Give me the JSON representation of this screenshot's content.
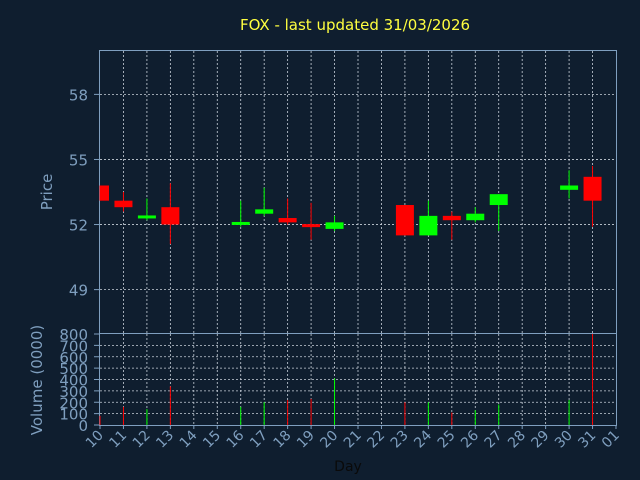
{
  "chart_data": {
    "type": "candlestick",
    "title": "FOX - last updated 31/03/2026",
    "xlabel": "Day",
    "ylabel_price": "Price",
    "ylabel_volume": "Volume (0000)",
    "x_ticks": [
      "10",
      "11",
      "12",
      "13",
      "14",
      "15",
      "16",
      "17",
      "18",
      "19",
      "20",
      "21",
      "22",
      "23",
      "24",
      "25",
      "26",
      "27",
      "28",
      "29",
      "30",
      "31",
      "01"
    ],
    "price_ylim": [
      47,
      60
    ],
    "price_ticks": [
      "49",
      "52",
      "55",
      "58"
    ],
    "volume_ylim": [
      0,
      800
    ],
    "volume_ticks": [
      "0",
      "100",
      "200",
      "300",
      "400",
      "500",
      "600",
      "700",
      "800"
    ],
    "grid": true,
    "up_color": "#00ff00",
    "down_color": "#ff0000",
    "candles": [
      {
        "day": "10",
        "open": 53.8,
        "high": 53.8,
        "low": 53.1,
        "close": 53.1,
        "volume": 80
      },
      {
        "day": "11",
        "open": 53.1,
        "high": 53.5,
        "low": 52.6,
        "close": 52.8,
        "volume": 160
      },
      {
        "day": "12",
        "open": 52.3,
        "high": 53.2,
        "low": 52.2,
        "close": 52.4,
        "volume": 140
      },
      {
        "day": "13",
        "open": 52.8,
        "high": 53.9,
        "low": 51.1,
        "close": 52.0,
        "volume": 340
      },
      {
        "day": "16",
        "open": 52.0,
        "high": 53.1,
        "low": 51.9,
        "close": 52.1,
        "volume": 160
      },
      {
        "day": "17",
        "open": 52.5,
        "high": 53.7,
        "low": 52.4,
        "close": 52.7,
        "volume": 200
      },
      {
        "day": "18",
        "open": 52.3,
        "high": 53.2,
        "low": 52.0,
        "close": 52.1,
        "volume": 220
      },
      {
        "day": "19",
        "open": 52.0,
        "high": 53.0,
        "low": 51.3,
        "close": 51.9,
        "volume": 230
      },
      {
        "day": "20",
        "open": 51.8,
        "high": 52.4,
        "low": 51.7,
        "close": 52.1,
        "volume": 410
      },
      {
        "day": "23",
        "open": 52.9,
        "high": 52.9,
        "low": 51.5,
        "close": 51.5,
        "volume": 200
      },
      {
        "day": "24",
        "open": 51.5,
        "high": 53.1,
        "low": 51.5,
        "close": 52.4,
        "volume": 200
      },
      {
        "day": "25",
        "open": 52.4,
        "high": 52.6,
        "low": 51.3,
        "close": 52.2,
        "volume": 110
      },
      {
        "day": "26",
        "open": 52.2,
        "high": 52.8,
        "low": 52.1,
        "close": 52.5,
        "volume": 130
      },
      {
        "day": "27",
        "open": 52.9,
        "high": 53.4,
        "low": 51.7,
        "close": 53.4,
        "volume": 180
      },
      {
        "day": "30",
        "open": 53.6,
        "high": 54.5,
        "low": 53.2,
        "close": 53.8,
        "volume": 220
      },
      {
        "day": "31",
        "open": 54.2,
        "high": 54.7,
        "low": 51.9,
        "close": 53.1,
        "volume": 800
      }
    ]
  }
}
